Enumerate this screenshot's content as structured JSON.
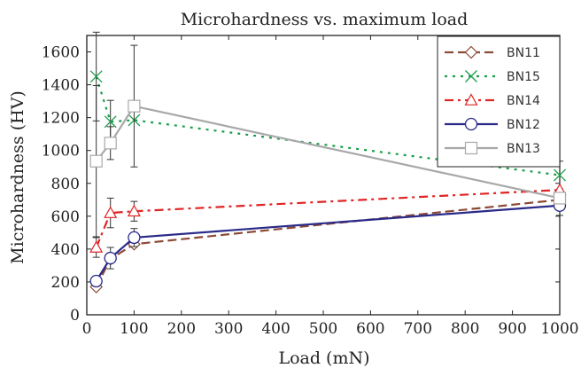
{
  "chart_data": {
    "type": "line",
    "title": "Microhardness vs. maximum load",
    "xlabel": "Load (mN)",
    "ylabel": "Microhardness (HV)",
    "xlim": [
      0,
      1000
    ],
    "ylim": [
      0,
      1700
    ],
    "xticks": [
      0,
      100,
      200,
      300,
      400,
      500,
      600,
      700,
      800,
      900,
      1000
    ],
    "yticks": [
      0,
      200,
      400,
      600,
      800,
      1000,
      1200,
      1400,
      1600
    ],
    "grid": false,
    "legend_position": "top-right",
    "series": [
      {
        "name": "BN11",
        "color": "#8b4a36",
        "dash": "10,5",
        "marker": "diamond",
        "x": [
          20,
          50,
          100,
          1000
        ],
        "y": [
          170,
          340,
          430,
          700
        ],
        "err": [
          0,
          0,
          0,
          0
        ]
      },
      {
        "name": "BN15",
        "color": "#1a9f4a",
        "dash": "3,6",
        "marker": "x",
        "x": [
          20,
          50,
          100,
          1000
        ],
        "y": [
          1450,
          1175,
          1185,
          850
        ],
        "err": [
          270,
          130,
          0,
          85
        ]
      },
      {
        "name": "BN14",
        "color": "#e02424",
        "dash": "10,5,3,5",
        "marker": "triangle",
        "x": [
          20,
          50,
          100,
          1000
        ],
        "y": [
          410,
          620,
          630,
          760
        ],
        "err": [
          60,
          90,
          60,
          0
        ]
      },
      {
        "name": "BN12",
        "color": "#2a2a8a",
        "dash": "",
        "marker": "circle",
        "x": [
          20,
          50,
          100,
          1000
        ],
        "y": [
          205,
          345,
          470,
          665
        ],
        "err": [
          0,
          65,
          55,
          60
        ]
      },
      {
        "name": "BN13",
        "color": "#a8a8a8",
        "dash": "",
        "marker": "square",
        "x": [
          20,
          50,
          100,
          1000
        ],
        "y": [
          935,
          1045,
          1270,
          710
        ],
        "err": [
          460,
          100,
          370,
          0
        ]
      }
    ]
  }
}
